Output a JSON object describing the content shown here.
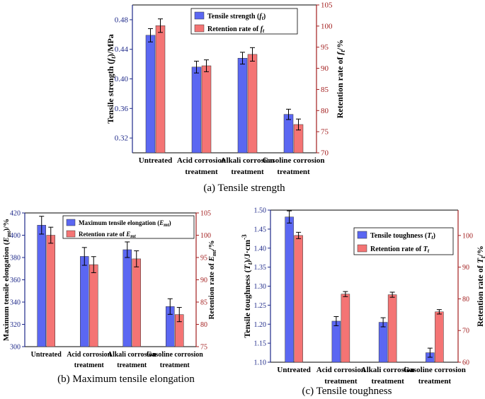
{
  "chart_data": [
    {
      "id": "a",
      "type": "bar",
      "caption": "(a) Tensile strength",
      "categories": [
        "Untreated",
        "Acid corrosion treatment",
        "Alkali corrosion treatment",
        "Gasoline corrosion treatment"
      ],
      "category_lines": [
        [
          "Untreated"
        ],
        [
          "Acid corrosion",
          "treatment"
        ],
        [
          "Alkali corrosion",
          "treatment"
        ],
        [
          "Gasoline corrosion",
          "treatment"
        ]
      ],
      "series": [
        {
          "name": "Tensile strength (ft)",
          "legend_main": "Tensile strength (",
          "legend_sym": "f",
          "legend_sub": "t",
          "legend_tail": ")",
          "axis": "left",
          "color": "#5b67f2",
          "values": [
            0.459,
            0.416,
            0.428,
            0.352
          ],
          "errors": [
            0.009,
            0.008,
            0.008,
            0.007
          ]
        },
        {
          "name": "Retention rate of ft",
          "legend_main": "Retention rate of ",
          "legend_sym": "f",
          "legend_sub": "t",
          "legend_tail": "",
          "axis": "right",
          "color": "#f47474",
          "values": [
            100.1,
            90.6,
            93.3,
            76.7
          ],
          "errors": [
            1.6,
            1.4,
            1.6,
            1.3
          ]
        }
      ],
      "ylabel": "Tensile strength (ft)/MPa",
      "ylabel_parts": [
        "Tensile strength (",
        "f",
        "t",
        ")/MPa"
      ],
      "y2label": "Retention rate of ft/%",
      "y2label_parts": [
        "Retention rate of ",
        "f",
        "t",
        "/%"
      ],
      "ylim": [
        0.3,
        0.5
      ],
      "yticks": [
        0.32,
        0.36,
        0.4,
        0.44,
        0.48
      ],
      "ytick_decimals": 2,
      "y2lim": [
        70,
        105
      ],
      "y2ticks": [
        70,
        75,
        80,
        85,
        90,
        95,
        100,
        105
      ],
      "left_axis_color": "#1f2a8a",
      "right_axis_color": "#a31f1f",
      "legend_position": "top-right"
    },
    {
      "id": "b",
      "type": "bar",
      "caption": "(b) Maximum tensile elongation",
      "categories": [
        "Untreated",
        "Acid corrosion treatment",
        "Alkali corrosion treatment",
        "Gasoline corrosion treatment"
      ],
      "category_lines": [
        [
          "Untreated"
        ],
        [
          "Acid corrosion",
          "treatment"
        ],
        [
          "Alkali corrosion",
          "treatment"
        ],
        [
          "Gasoline corrosion",
          "treatment"
        ]
      ],
      "series": [
        {
          "name": "Maximum tensile elongation (Emt)",
          "legend_main": "Maximum tensile elongation (",
          "legend_sym": "E",
          "legend_sub": "mt",
          "legend_tail": ")",
          "axis": "left",
          "color": "#5b67f2",
          "values": [
            409,
            381,
            387,
            336
          ],
          "errors": [
            8,
            8,
            7,
            7
          ]
        },
        {
          "name": "Retention rate of Emt",
          "legend_main": "Retention rate of ",
          "legend_sym": "E",
          "legend_sub": "mt",
          "legend_tail": "",
          "axis": "right",
          "color": "#f47474",
          "values": [
            100,
            93.4,
            94.7,
            82.2
          ],
          "errors": [
            1.8,
            1.8,
            1.8,
            1.6
          ]
        }
      ],
      "ylabel": "Maximum tensile elongation (Emt)/%",
      "ylabel_parts": [
        "Maximum tensile elongation (",
        "E",
        "mt",
        ")/%"
      ],
      "y2label": "Retention rate of Emt/%",
      "y2label_parts": [
        "Retention rate of ",
        "E",
        "mt",
        "/%"
      ],
      "ylim": [
        300,
        420
      ],
      "yticks": [
        300,
        320,
        340,
        360,
        380,
        400,
        420
      ],
      "ytick_decimals": 0,
      "y2lim": [
        75,
        105
      ],
      "y2ticks": [
        75,
        80,
        85,
        90,
        95,
        100,
        105
      ],
      "left_axis_color": "#1f2a8a",
      "right_axis_color": "#a31f1f",
      "legend_position": "top-right"
    },
    {
      "id": "c",
      "type": "bar",
      "caption": "(c) Tensile toughness",
      "categories": [
        "Untreated",
        "Acid corrosion treatment",
        "Alkali corrosion treatment",
        "Gasoline corrosion treatment"
      ],
      "category_lines": [
        [
          "Untreated"
        ],
        [
          "Acid corrosion",
          "treatment"
        ],
        [
          "Alkali corrosion",
          "treatment"
        ],
        [
          "Gasoline corrosion",
          "treatment"
        ]
      ],
      "series": [
        {
          "name": "Tensile toughness (Tt)",
          "legend_main": "Tensile toughness (",
          "legend_sym": "T",
          "legend_sub": "t",
          "legend_tail": ")",
          "axis": "left",
          "color": "#5b67f2",
          "values": [
            1.482,
            1.208,
            1.205,
            1.125
          ],
          "errors": [
            0.016,
            0.012,
            0.012,
            0.012
          ]
        },
        {
          "name": "Retention rate of Tt",
          "legend_main": "Retention rate of ",
          "legend_sym": "T",
          "legend_sub": "t",
          "legend_tail": "",
          "axis": "right",
          "color": "#f47474",
          "values": [
            100,
            81.5,
            81.3,
            75.9
          ],
          "errors": [
            1.0,
            0.8,
            0.8,
            0.7
          ]
        }
      ],
      "ylabel": "Tensile toughness (Tt)/J·cm-3",
      "ylabel_parts": [
        "Tensile toughness (",
        "T",
        "t",
        ")/J·cm",
        "-3"
      ],
      "y2label": "Retention rate of Tt/%",
      "y2label_parts": [
        "Retention rate of ",
        "T",
        "t",
        "/%"
      ],
      "ylim": [
        1.1,
        1.5
      ],
      "yticks": [
        1.1,
        1.15,
        1.2,
        1.25,
        1.3,
        1.35,
        1.4,
        1.45,
        1.5
      ],
      "ytick_decimals": 2,
      "y2lim": [
        60,
        108
      ],
      "y2ticks": [
        60,
        70,
        80,
        90,
        100
      ],
      "left_axis_color": "#1f2a8a",
      "right_axis_color": "#a31f1f",
      "legend_position": "top-right"
    }
  ]
}
